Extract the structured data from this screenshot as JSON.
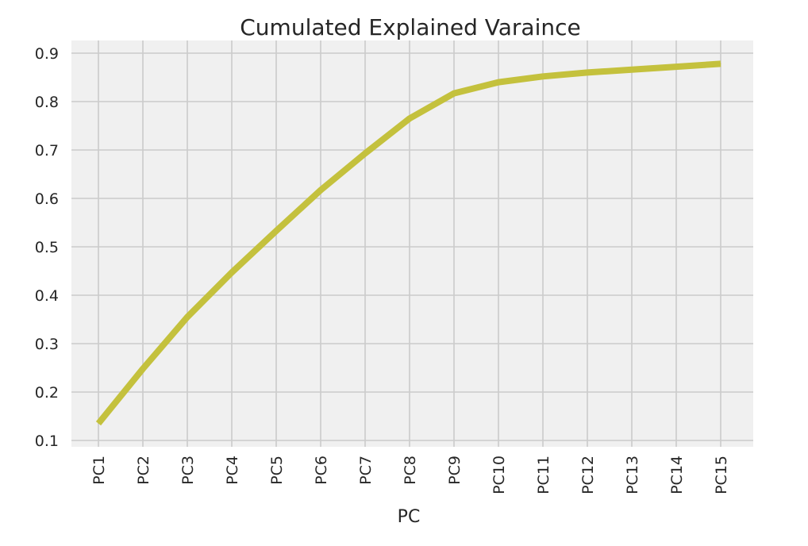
{
  "chart_data": {
    "type": "line",
    "title": "Cumulated Explained Varaince",
    "xlabel": "PC",
    "ylabel": "",
    "categories": [
      "PC1",
      "PC2",
      "PC3",
      "PC4",
      "PC5",
      "PC6",
      "PC7",
      "PC8",
      "PC9",
      "PC10",
      "PC11",
      "PC12",
      "PC13",
      "PC14",
      "PC15"
    ],
    "series": [
      {
        "name": "",
        "color": "#c4c13d",
        "values": [
          0.135,
          0.248,
          0.355,
          0.447,
          0.533,
          0.617,
          0.693,
          0.765,
          0.817,
          0.84,
          0.852,
          0.86,
          0.866,
          0.872,
          0.878
        ]
      }
    ],
    "y_ticks": [
      "0.1",
      "0.2",
      "0.3",
      "0.4",
      "0.5",
      "0.6",
      "0.7",
      "0.8",
      "0.9"
    ],
    "ylim": [
      0.1,
      0.9
    ],
    "grid": true,
    "legend": "none",
    "colors": {
      "plot_background": "#f0f0f0",
      "grid": "#cbcbcb",
      "line": "#c4c13d"
    }
  }
}
